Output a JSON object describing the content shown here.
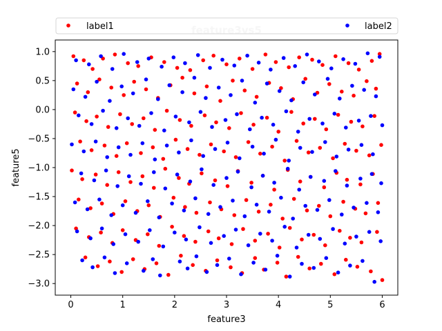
{
  "chart_data": {
    "type": "scatter",
    "title": "feature3vs5",
    "xlabel": "feature3",
    "ylabel": "feature5",
    "xlim": [
      -0.3,
      6.3
    ],
    "ylim": [
      -3.2,
      1.2
    ],
    "xticks": [
      0,
      1,
      2,
      3,
      4,
      5,
      6
    ],
    "xtick_labels": [
      "0",
      "1",
      "2",
      "3",
      "4",
      "5",
      "6"
    ],
    "yticks": [
      1.0,
      0.5,
      0.0,
      -0.5,
      -1.0,
      -1.5,
      -2.0,
      -2.5,
      -3.0
    ],
    "ytick_labels": [
      "1.0",
      "0.5",
      "0.0",
      "−0.5",
      "−1.0",
      "−1.5",
      "−2.0",
      "−2.5",
      "−3.0"
    ],
    "grid": false,
    "legend_placement": "top, spanning the width",
    "series": [
      {
        "name": "label1",
        "color": "#ff0000",
        "x": [
          0.05,
          0.25,
          0.42,
          0.62,
          0.85,
          1.1,
          1.3,
          1.55,
          1.8,
          2.05,
          2.3,
          2.55,
          2.75,
          3.0,
          3.25,
          3.5,
          3.75,
          3.95,
          4.2,
          4.4,
          4.65,
          4.85,
          5.1,
          5.35,
          5.55,
          5.8,
          5.95,
          0.12,
          0.33,
          0.55,
          0.78,
          1.02,
          1.22,
          1.45,
          1.68,
          1.92,
          2.15,
          2.38,
          2.62,
          2.88,
          3.12,
          3.35,
          3.58,
          3.82,
          4.05,
          4.28,
          4.52,
          4.75,
          4.98,
          5.22,
          5.45,
          5.7,
          5.88,
          0.08,
          0.3,
          0.5,
          0.72,
          0.95,
          1.18,
          1.4,
          1.62,
          1.85,
          2.1,
          2.32,
          2.58,
          2.8,
          3.05,
          3.28,
          3.52,
          3.78,
          4.0,
          4.25,
          4.48,
          4.7,
          4.92,
          5.15,
          5.4,
          5.62,
          5.85,
          0.18,
          0.4,
          0.65,
          0.88,
          1.08,
          1.35,
          1.58,
          1.78,
          2.02,
          2.25,
          2.48,
          2.7,
          2.95,
          3.18,
          3.42,
          3.65,
          3.88,
          4.12,
          4.35,
          4.58,
          4.8,
          5.05,
          5.28,
          5.5,
          5.75,
          5.98,
          0.02,
          0.22,
          0.48,
          0.7,
          0.92,
          1.15,
          1.38,
          1.6,
          1.82,
          2.08,
          2.28,
          2.52,
          2.78,
          3.02,
          3.22,
          3.48,
          3.7,
          3.92,
          4.18,
          4.42,
          4.62,
          4.88,
          5.12,
          5.32,
          5.58,
          5.82,
          0.15,
          0.38,
          0.6,
          0.82,
          1.05,
          1.28,
          1.5,
          1.72,
          1.98,
          2.2,
          2.42,
          2.68,
          2.9,
          3.15,
          3.38,
          3.62,
          3.85,
          4.08,
          4.3,
          4.55,
          4.78,
          5.0,
          5.25,
          5.48,
          5.68,
          5.92,
          0.1,
          0.35,
          0.58,
          0.8,
          1.0,
          1.25,
          1.48,
          1.7,
          1.95,
          2.18,
          2.4,
          2.65,
          2.85,
          3.1,
          3.32,
          3.55,
          3.8,
          4.02,
          4.22,
          4.45,
          4.68,
          4.9,
          5.18,
          5.38,
          5.6,
          5.9,
          0.28,
          0.52,
          0.75,
          0.98,
          1.2,
          1.42,
          1.65,
          1.88,
          2.12,
          2.35,
          2.6,
          2.82,
          3.08,
          3.3,
          3.55,
          3.72,
          3.98,
          4.15,
          4.38,
          4.6,
          4.82,
          5.08,
          5.3,
          5.52,
          5.78,
          6.0
        ],
        "y": [
          0.92,
          0.85,
          0.7,
          0.88,
          0.95,
          0.8,
          0.75,
          0.9,
          0.82,
          0.72,
          0.68,
          0.85,
          0.93,
          0.78,
          0.88,
          0.7,
          0.95,
          0.82,
          0.73,
          0.9,
          0.86,
          0.77,
          0.92,
          0.8,
          0.69,
          0.84,
          0.96,
          0.45,
          0.3,
          0.52,
          0.38,
          0.25,
          0.48,
          0.35,
          0.2,
          0.42,
          0.55,
          0.28,
          0.4,
          0.15,
          0.5,
          0.33,
          0.22,
          0.46,
          0.37,
          0.18,
          0.53,
          0.29,
          0.44,
          0.31,
          0.24,
          0.49,
          0.36,
          -0.05,
          -0.2,
          -0.12,
          -0.3,
          -0.08,
          -0.25,
          -0.15,
          -0.35,
          -0.02,
          -0.18,
          -0.28,
          -0.1,
          -0.22,
          -0.32,
          -0.06,
          -0.26,
          -0.14,
          -0.38,
          -0.04,
          -0.24,
          -0.16,
          -0.34,
          -0.09,
          -0.21,
          -0.29,
          -0.11,
          -0.55,
          -0.7,
          -0.62,
          -0.8,
          -0.58,
          -0.75,
          -0.65,
          -0.85,
          -0.52,
          -0.68,
          -0.78,
          -0.6,
          -0.72,
          -0.82,
          -0.56,
          -0.76,
          -0.64,
          -0.88,
          -0.54,
          -0.74,
          -0.66,
          -0.84,
          -0.59,
          -0.71,
          -0.79,
          -0.61,
          -1.05,
          -1.2,
          -1.12,
          -1.3,
          -1.08,
          -1.25,
          -1.15,
          -1.35,
          -1.02,
          -1.18,
          -1.28,
          -1.1,
          -1.22,
          -1.32,
          -1.06,
          -1.26,
          -1.14,
          -1.38,
          -1.04,
          -1.24,
          -1.16,
          -1.34,
          -1.09,
          -1.21,
          -1.29,
          -1.11,
          -1.55,
          -1.7,
          -1.62,
          -1.8,
          -1.58,
          -1.75,
          -1.65,
          -1.85,
          -1.52,
          -1.68,
          -1.78,
          -1.6,
          -1.72,
          -1.82,
          -1.56,
          -1.76,
          -1.64,
          -1.88,
          -1.54,
          -1.74,
          -1.66,
          -1.84,
          -1.59,
          -1.71,
          -1.79,
          -1.61,
          -2.05,
          -2.2,
          -2.12,
          -2.3,
          -2.08,
          -2.25,
          -2.15,
          -2.35,
          -2.02,
          -2.18,
          -2.28,
          -2.1,
          -2.22,
          -2.32,
          -2.06,
          -2.26,
          -2.14,
          -2.38,
          -2.04,
          -2.24,
          -2.16,
          -2.34,
          -2.09,
          -2.21,
          -2.29,
          -2.11,
          -2.55,
          -2.7,
          -2.62,
          -2.8,
          -2.58,
          -2.75,
          -2.65,
          -2.85,
          -2.52,
          -2.68,
          -2.78,
          -2.6,
          -2.72,
          -2.82,
          -2.56,
          -2.76,
          -2.64,
          -2.88,
          -2.54,
          -2.74,
          -2.66,
          -2.84,
          -2.59,
          -2.71,
          -2.79,
          -2.94
        ]
      },
      {
        "name": "label2",
        "color": "#0000ff",
        "x": [
          0.1,
          0.35,
          0.58,
          0.8,
          1.02,
          1.28,
          1.5,
          1.75,
          1.98,
          2.2,
          2.45,
          2.68,
          2.92,
          3.15,
          3.4,
          3.62,
          3.85,
          4.1,
          4.32,
          4.55,
          4.78,
          5.02,
          5.25,
          5.48,
          5.72,
          5.95,
          0.05,
          0.28,
          0.5,
          0.75,
          0.98,
          1.2,
          1.45,
          1.68,
          1.9,
          2.15,
          2.38,
          2.6,
          2.85,
          3.08,
          3.3,
          3.55,
          3.78,
          4.02,
          4.25,
          4.48,
          4.7,
          4.95,
          5.18,
          5.42,
          5.65,
          5.88,
          0.15,
          0.4,
          0.62,
          0.88,
          1.1,
          1.32,
          1.55,
          1.8,
          2.02,
          2.28,
          2.5,
          2.72,
          2.98,
          3.2,
          3.45,
          3.68,
          3.9,
          4.15,
          4.38,
          4.6,
          4.85,
          5.08,
          5.3,
          5.55,
          5.78,
          6.0,
          0.02,
          0.25,
          0.48,
          0.7,
          0.92,
          1.15,
          1.38,
          1.62,
          1.85,
          2.08,
          2.32,
          2.55,
          2.78,
          3.02,
          3.25,
          3.5,
          3.72,
          3.95,
          4.2,
          4.42,
          4.65,
          4.9,
          5.12,
          5.35,
          5.6,
          5.82,
          0.2,
          0.45,
          0.68,
          0.9,
          1.12,
          1.35,
          1.6,
          1.82,
          2.05,
          2.3,
          2.52,
          2.75,
          3.0,
          3.22,
          3.48,
          3.7,
          3.92,
          4.18,
          4.4,
          4.62,
          4.88,
          5.1,
          5.32,
          5.58,
          5.8,
          5.98,
          0.08,
          0.32,
          0.55,
          0.78,
          1.0,
          1.25,
          1.48,
          1.7,
          1.95,
          2.18,
          2.4,
          2.65,
          2.88,
          3.12,
          3.35,
          3.58,
          3.82,
          4.05,
          4.28,
          4.52,
          4.75,
          4.98,
          5.22,
          5.45,
          5.7,
          5.92,
          0.12,
          0.38,
          0.6,
          0.82,
          1.05,
          1.3,
          1.52,
          1.78,
          2.0,
          2.22,
          2.48,
          2.7,
          2.95,
          3.18,
          3.42,
          3.65,
          3.88,
          4.12,
          4.35,
          4.58,
          4.8,
          5.05,
          5.28,
          5.5,
          5.75,
          5.97,
          0.22,
          0.42,
          0.65,
          0.85,
          1.08,
          1.4,
          1.58,
          1.72,
          2.1,
          2.25,
          2.42,
          2.62,
          2.82,
          3.05,
          3.28,
          3.52,
          3.75,
          3.98,
          4.22,
          4.45,
          4.68,
          4.92,
          5.15,
          5.38,
          5.62,
          5.85
        ],
        "y": [
          0.85,
          0.78,
          0.92,
          0.7,
          0.96,
          0.82,
          0.88,
          0.74,
          0.9,
          0.8,
          0.94,
          0.72,
          0.86,
          0.76,
          0.93,
          0.81,
          0.69,
          0.89,
          0.75,
          0.95,
          0.83,
          0.71,
          0.87,
          0.79,
          0.97,
          0.91,
          0.35,
          0.22,
          0.48,
          0.15,
          0.4,
          0.28,
          0.52,
          0.18,
          0.42,
          0.3,
          0.55,
          0.2,
          0.38,
          0.25,
          0.5,
          0.12,
          0.45,
          0.32,
          0.16,
          0.47,
          0.26,
          0.53,
          0.19,
          0.41,
          0.34,
          0.23,
          -0.1,
          -0.25,
          -0.02,
          -0.32,
          -0.15,
          -0.28,
          -0.06,
          -0.36,
          -0.12,
          -0.22,
          -0.04,
          -0.3,
          -0.18,
          -0.08,
          -0.34,
          -0.14,
          -0.26,
          -0.03,
          -0.38,
          -0.16,
          -0.24,
          -0.07,
          -0.31,
          -0.19,
          -0.11,
          -0.27,
          -0.6,
          -0.72,
          -0.55,
          -0.82,
          -0.65,
          -0.78,
          -0.58,
          -0.86,
          -0.62,
          -0.74,
          -0.53,
          -0.8,
          -0.68,
          -0.57,
          -0.84,
          -0.64,
          -0.76,
          -0.52,
          -0.88,
          -0.66,
          -0.73,
          -0.56,
          -0.81,
          -0.69,
          -0.61,
          -0.77,
          -1.1,
          -1.22,
          -1.05,
          -1.32,
          -1.15,
          -1.28,
          -1.08,
          -1.36,
          -1.12,
          -1.24,
          -1.03,
          -1.3,
          -1.18,
          -1.07,
          -1.34,
          -1.14,
          -1.26,
          -1.02,
          -1.38,
          -1.16,
          -1.23,
          -1.06,
          -1.31,
          -1.19,
          -1.11,
          -1.27,
          -1.6,
          -1.72,
          -1.55,
          -1.82,
          -1.65,
          -1.78,
          -1.58,
          -1.86,
          -1.62,
          -1.74,
          -1.53,
          -1.8,
          -1.68,
          -1.57,
          -1.84,
          -1.64,
          -1.76,
          -1.52,
          -1.88,
          -1.66,
          -1.73,
          -1.56,
          -1.81,
          -1.69,
          -1.61,
          -1.77,
          -2.1,
          -2.22,
          -2.05,
          -2.32,
          -2.15,
          -2.28,
          -2.08,
          -2.36,
          -2.12,
          -2.24,
          -2.03,
          -2.3,
          -2.18,
          -2.07,
          -2.34,
          -2.14,
          -2.26,
          -2.02,
          -2.38,
          -2.16,
          -2.23,
          -2.06,
          -2.31,
          -2.19,
          -2.11,
          -2.27,
          -2.6,
          -2.72,
          -2.55,
          -2.82,
          -2.65,
          -2.78,
          -2.58,
          -2.86,
          -2.62,
          -2.74,
          -2.53,
          -2.8,
          -2.68,
          -2.57,
          -2.84,
          -2.64,
          -2.76,
          -2.52,
          -2.88,
          -2.66,
          -2.73,
          -2.56,
          -2.81,
          -2.69,
          -2.61,
          -2.97
        ]
      }
    ]
  }
}
